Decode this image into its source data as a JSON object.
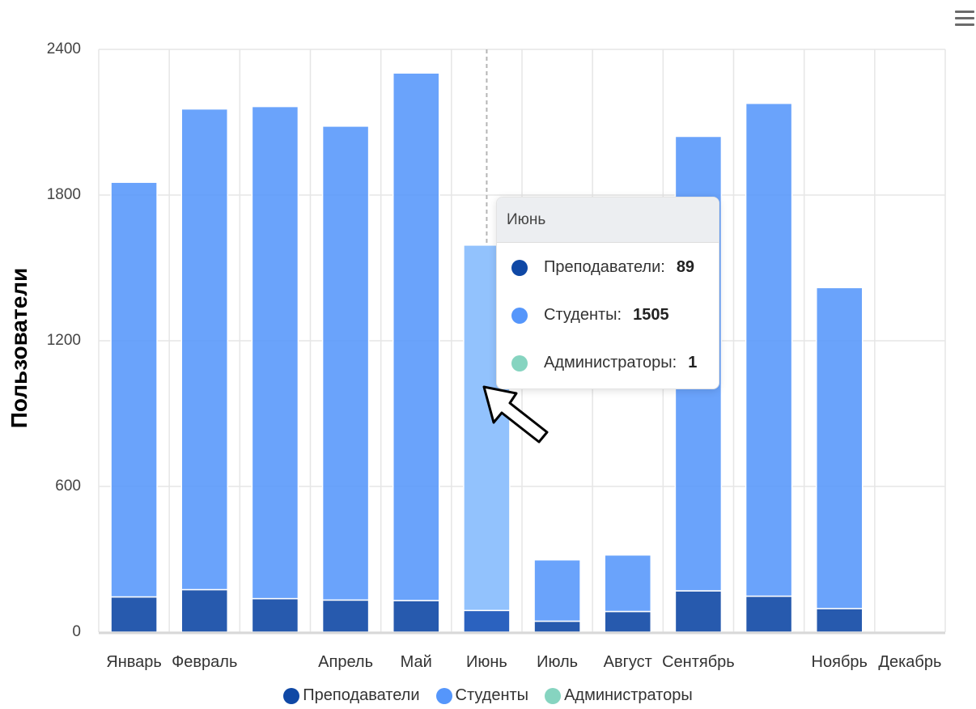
{
  "chart_data": {
    "type": "bar",
    "stacked": true,
    "categories": [
      "Январь",
      "Февраль",
      "",
      "Апрель",
      "Май",
      "Июнь",
      "Июль",
      "Август",
      "Сентябрь",
      "",
      "Ноябрь",
      "Декабрь"
    ],
    "series": [
      {
        "name": "Преподаватели",
        "color": "#0f48a5",
        "values": [
          145,
          175,
          138,
          132,
          130,
          89,
          45,
          85,
          170,
          148,
          97,
          0
        ]
      },
      {
        "name": "Студенты",
        "color": "#5596fb",
        "values": [
          1708,
          1980,
          2027,
          1952,
          2173,
          1505,
          253,
          233,
          1872,
          2030,
          1322,
          0
        ]
      },
      {
        "name": "Администраторы",
        "color": "#86d4c0",
        "values": [
          1,
          1,
          1,
          1,
          1,
          1,
          1,
          1,
          1,
          1,
          1,
          0
        ]
      }
    ],
    "ylabel": "Пользователи",
    "xlabel": "",
    "ylim": [
      0,
      2400
    ],
    "yticks": [
      "0",
      "600",
      "1200",
      "1800",
      "2400"
    ],
    "grid": true,
    "legend": "bottom",
    "highlighted_category": "Июнь"
  },
  "tooltip": {
    "title": "Июнь",
    "rows": [
      {
        "label": "Преподаватели:",
        "value": "89"
      },
      {
        "label": "Студенты:",
        "value": "1505"
      },
      {
        "label": "Администраторы:",
        "value": "1"
      }
    ]
  },
  "menu_icon": "hamburger-menu-icon",
  "cursor_icon": "mouse-pointer-icon"
}
